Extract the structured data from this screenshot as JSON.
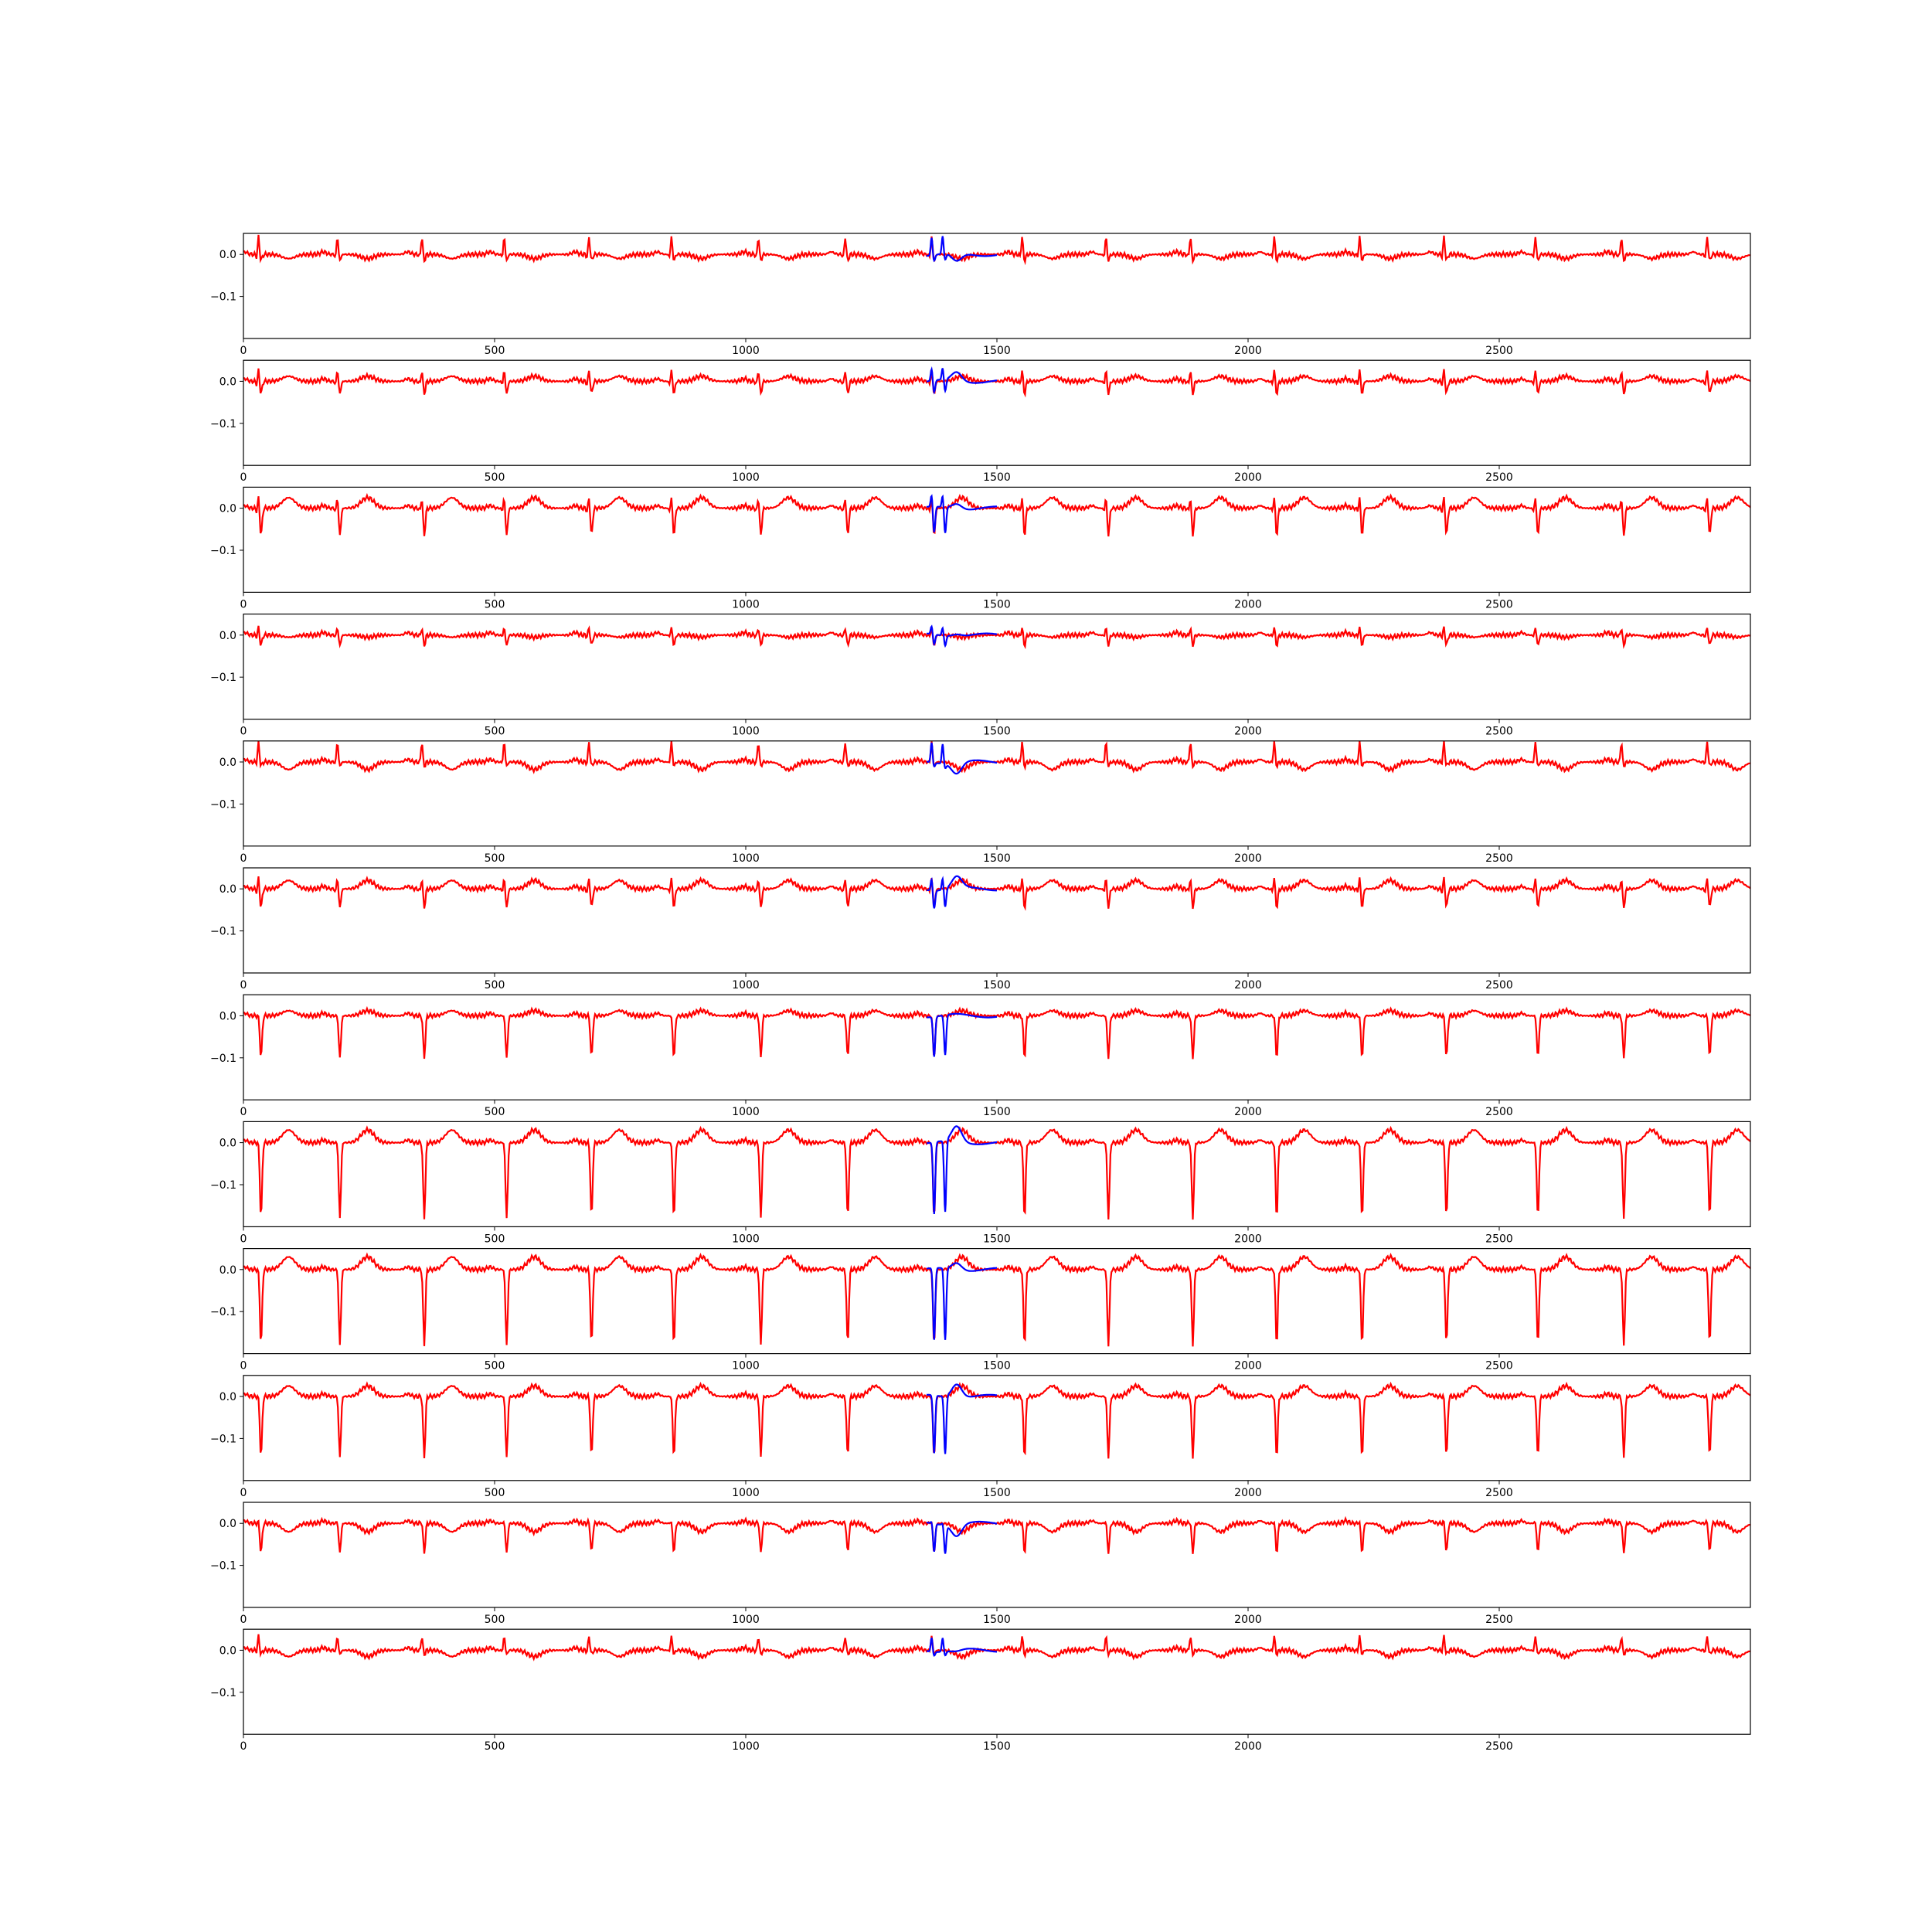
{
  "chart_data": {
    "type": "line",
    "layout": "12 stacked subplots, shared styling",
    "xlim": [
      0,
      3000
    ],
    "ylim": [
      -0.2,
      0.05
    ],
    "xticks": [
      0,
      500,
      1000,
      1500,
      2000,
      2500
    ],
    "xtick_labels": [
      "0",
      "500",
      "1000",
      "1500",
      "2000",
      "2500"
    ],
    "yticks": [
      0.0,
      -0.1
    ],
    "ytick_labels": [
      "0.0",
      "−0.1"
    ],
    "grid": false,
    "legend": "none",
    "beats": [
      30,
      187,
      355,
      519,
      688,
      852,
      1025,
      1198,
      1370,
      1550,
      1717,
      1885,
      2052,
      2222,
      2390,
      2572,
      2743,
      2914
    ],
    "overlay_range": [
      1360,
      1500
    ],
    "overlay_beats": [
      1370,
      1392
    ],
    "series_colors": {
      "signal": "#ff0000",
      "overlay": "#0000ff"
    },
    "leads": [
      {
        "r": 0.045,
        "s": -0.015,
        "t": -0.01,
        "q": -0.01
      },
      {
        "r": 0.03,
        "s": -0.03,
        "t": 0.012,
        "q": -0.01
      },
      {
        "r": 0.03,
        "s": -0.065,
        "t": 0.025,
        "q": -0.01
      },
      {
        "r": 0.02,
        "s": -0.025,
        "t": -0.005,
        "q": -0.005
      },
      {
        "r": 0.05,
        "s": -0.01,
        "t": -0.018,
        "q": -0.005
      },
      {
        "r": 0.03,
        "s": -0.045,
        "t": 0.02,
        "q": -0.01
      },
      {
        "r": 0.0,
        "s": -0.1,
        "t": 0.012,
        "q": 0.0
      },
      {
        "r": 0.0,
        "s": -0.18,
        "t": 0.03,
        "q": 0.0
      },
      {
        "r": 0.0,
        "s": -0.18,
        "t": 0.03,
        "q": 0.0
      },
      {
        "r": 0.0,
        "s": -0.145,
        "t": 0.025,
        "q": 0.0
      },
      {
        "r": 0.005,
        "s": -0.07,
        "t": -0.02,
        "q": 0.0
      },
      {
        "r": 0.035,
        "s": -0.01,
        "t": -0.015,
        "q": -0.005
      }
    ]
  }
}
